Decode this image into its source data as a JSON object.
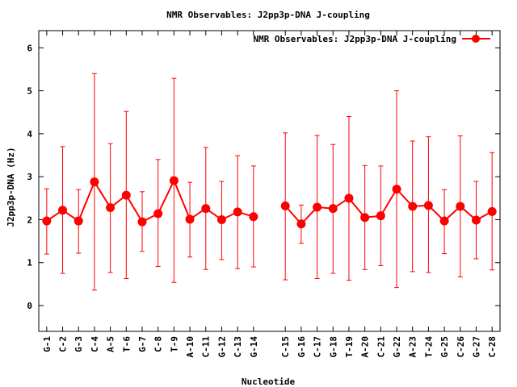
{
  "chart_data": {
    "type": "line",
    "title": "NMR Observables: J2pp3p-DNA J-coupling",
    "xlabel": "Nucleotide",
    "ylabel": "J2pp3p-DNA (Hz)",
    "ylim": [
      -0.6,
      6.4
    ],
    "yticks": [
      0,
      1,
      2,
      3,
      4,
      5,
      6
    ],
    "xlim": [
      0.5,
      28.5
    ],
    "grid": false,
    "legend_position": "top-right",
    "colors": {
      "series": "#ff0000",
      "axis": "#000000"
    },
    "categories": [
      "G-1",
      "C-2",
      "G-3",
      "C-4",
      "A-5",
      "T-6",
      "G-7",
      "C-8",
      "T-9",
      "A-10",
      "C-11",
      "G-12",
      "C-13",
      "G-14",
      "C-15",
      "G-16",
      "C-17",
      "G-18",
      "T-19",
      "A-20",
      "C-21",
      "G-22",
      "A-23",
      "T-24",
      "G-25",
      "C-26",
      "G-27",
      "C-28"
    ],
    "x": [
      1,
      2,
      3,
      4,
      5,
      6,
      7,
      8,
      9,
      10,
      11,
      12,
      13,
      14,
      16,
      17,
      18,
      19,
      20,
      21,
      22,
      23,
      24,
      25,
      26,
      27,
      28,
      29
    ],
    "series": [
      {
        "name": "NMR Observables: J2pp3p-DNA J-coupling",
        "segments": [
          [
            0,
            13
          ],
          [
            14,
            27
          ]
        ],
        "values": [
          1.97,
          2.22,
          1.97,
          2.88,
          2.28,
          2.57,
          1.95,
          2.14,
          2.91,
          2.01,
          2.26,
          2.0,
          2.18,
          2.07,
          2.32,
          1.9,
          2.29,
          2.26,
          2.5,
          2.05,
          2.09,
          2.71,
          2.31,
          2.33,
          1.97,
          2.31,
          1.99,
          2.19
        ],
        "err_low": [
          1.2,
          0.75,
          1.22,
          0.36,
          0.77,
          0.63,
          1.26,
          0.91,
          0.54,
          1.13,
          0.84,
          1.07,
          0.86,
          0.9,
          0.6,
          1.45,
          0.63,
          0.75,
          0.59,
          0.84,
          0.93,
          0.42,
          0.79,
          0.77,
          1.21,
          0.67,
          1.09,
          0.83
        ],
        "err_high": [
          2.72,
          3.7,
          2.7,
          5.4,
          3.77,
          4.52,
          2.65,
          3.4,
          5.29,
          2.87,
          3.68,
          2.89,
          3.49,
          3.25,
          4.02,
          2.34,
          3.96,
          3.75,
          4.4,
          3.26,
          3.25,
          5.0,
          3.83,
          3.93,
          2.7,
          3.95,
          2.89,
          3.56
        ]
      }
    ]
  }
}
